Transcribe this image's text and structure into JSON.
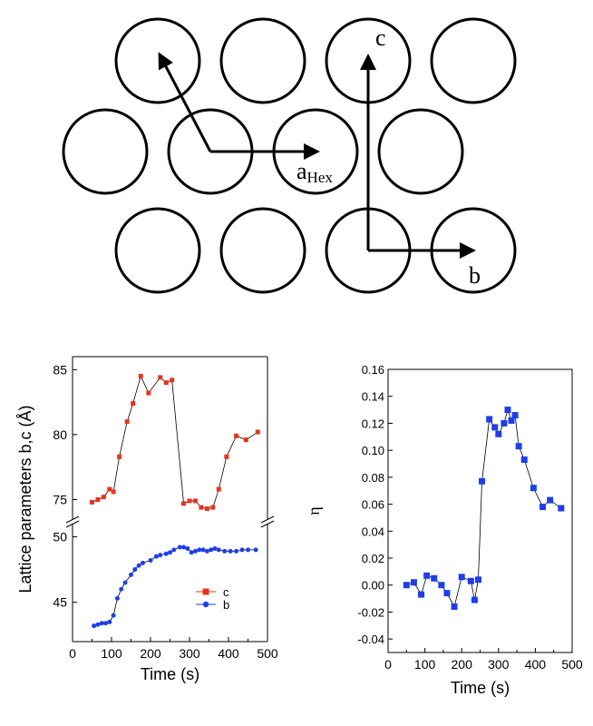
{
  "diagram": {
    "labels": {
      "c": "c",
      "a_main": "a",
      "a_sub": "Hex",
      "b": "b"
    }
  },
  "chart_data": [
    {
      "type": "line",
      "title": "",
      "xlabel": "Time (s)",
      "ylabel": "Lattice parameters b,c (Å)",
      "xlim": [
        0,
        500
      ],
      "x_ticks": [
        0,
        100,
        200,
        300,
        400,
        500
      ],
      "broken_y_axis": true,
      "upper_ylim": [
        73.5,
        86
      ],
      "upper_y_ticks": [
        75,
        80,
        85
      ],
      "lower_ylim": [
        42,
        51
      ],
      "lower_y_ticks": [
        45,
        50
      ],
      "legend_position": "lower-right",
      "series": [
        {
          "name": "c",
          "color": "#e8341c",
          "marker": "square",
          "x": [
            50,
            65,
            80,
            95,
            105,
            120,
            140,
            155,
            175,
            195,
            225,
            240,
            255,
            285,
            300,
            315,
            330,
            345,
            360,
            375,
            395,
            420,
            445,
            475
          ],
          "y": [
            74.8,
            75.0,
            75.2,
            75.8,
            75.6,
            78.3,
            81.0,
            82.4,
            84.5,
            83.2,
            84.4,
            84.0,
            84.2,
            74.7,
            74.9,
            74.9,
            74.4,
            74.3,
            74.4,
            75.8,
            78.3,
            79.9,
            79.6,
            80.2
          ]
        },
        {
          "name": "b",
          "color": "#1f3ee8",
          "marker": "circle",
          "x": [
            55,
            65,
            75,
            85,
            95,
            105,
            115,
            125,
            135,
            150,
            160,
            170,
            180,
            200,
            215,
            225,
            240,
            250,
            260,
            275,
            285,
            295,
            305,
            315,
            325,
            335,
            345,
            355,
            365,
            375,
            390,
            405,
            420,
            435,
            450,
            470
          ],
          "y": [
            43.2,
            43.3,
            43.4,
            43.4,
            43.5,
            44.0,
            45.3,
            46.0,
            46.5,
            47.1,
            47.5,
            47.8,
            48.0,
            48.2,
            48.5,
            48.6,
            48.7,
            48.8,
            49.0,
            49.2,
            49.2,
            49.1,
            48.8,
            48.9,
            49.0,
            49.0,
            48.9,
            49.0,
            49.1,
            49.0,
            48.9,
            48.9,
            48.9,
            49.0,
            49.0,
            49.0
          ]
        }
      ]
    },
    {
      "type": "line",
      "title": "",
      "xlabel": "Time (s)",
      "ylabel": "η",
      "xlim": [
        0,
        500
      ],
      "x_ticks": [
        0,
        100,
        200,
        300,
        400,
        500
      ],
      "ylim": [
        -0.05,
        0.16
      ],
      "y_ticks": [
        -0.04,
        -0.02,
        0.0,
        0.02,
        0.04,
        0.06,
        0.08,
        0.1,
        0.12,
        0.14,
        0.16
      ],
      "series": [
        {
          "color": "#1f3ee8",
          "marker": "square",
          "x": [
            50,
            70,
            90,
            105,
            125,
            145,
            160,
            180,
            200,
            225,
            235,
            245,
            255,
            275,
            290,
            300,
            315,
            325,
            335,
            345,
            355,
            370,
            395,
            420,
            440,
            470
          ],
          "y": [
            0.0,
            0.002,
            -0.007,
            0.007,
            0.005,
            0.0,
            -0.006,
            -0.016,
            0.006,
            0.003,
            -0.011,
            0.004,
            0.077,
            0.123,
            0.117,
            0.112,
            0.12,
            0.13,
            0.122,
            0.126,
            0.103,
            0.093,
            0.072,
            0.058,
            0.063,
            0.057
          ]
        }
      ]
    }
  ]
}
